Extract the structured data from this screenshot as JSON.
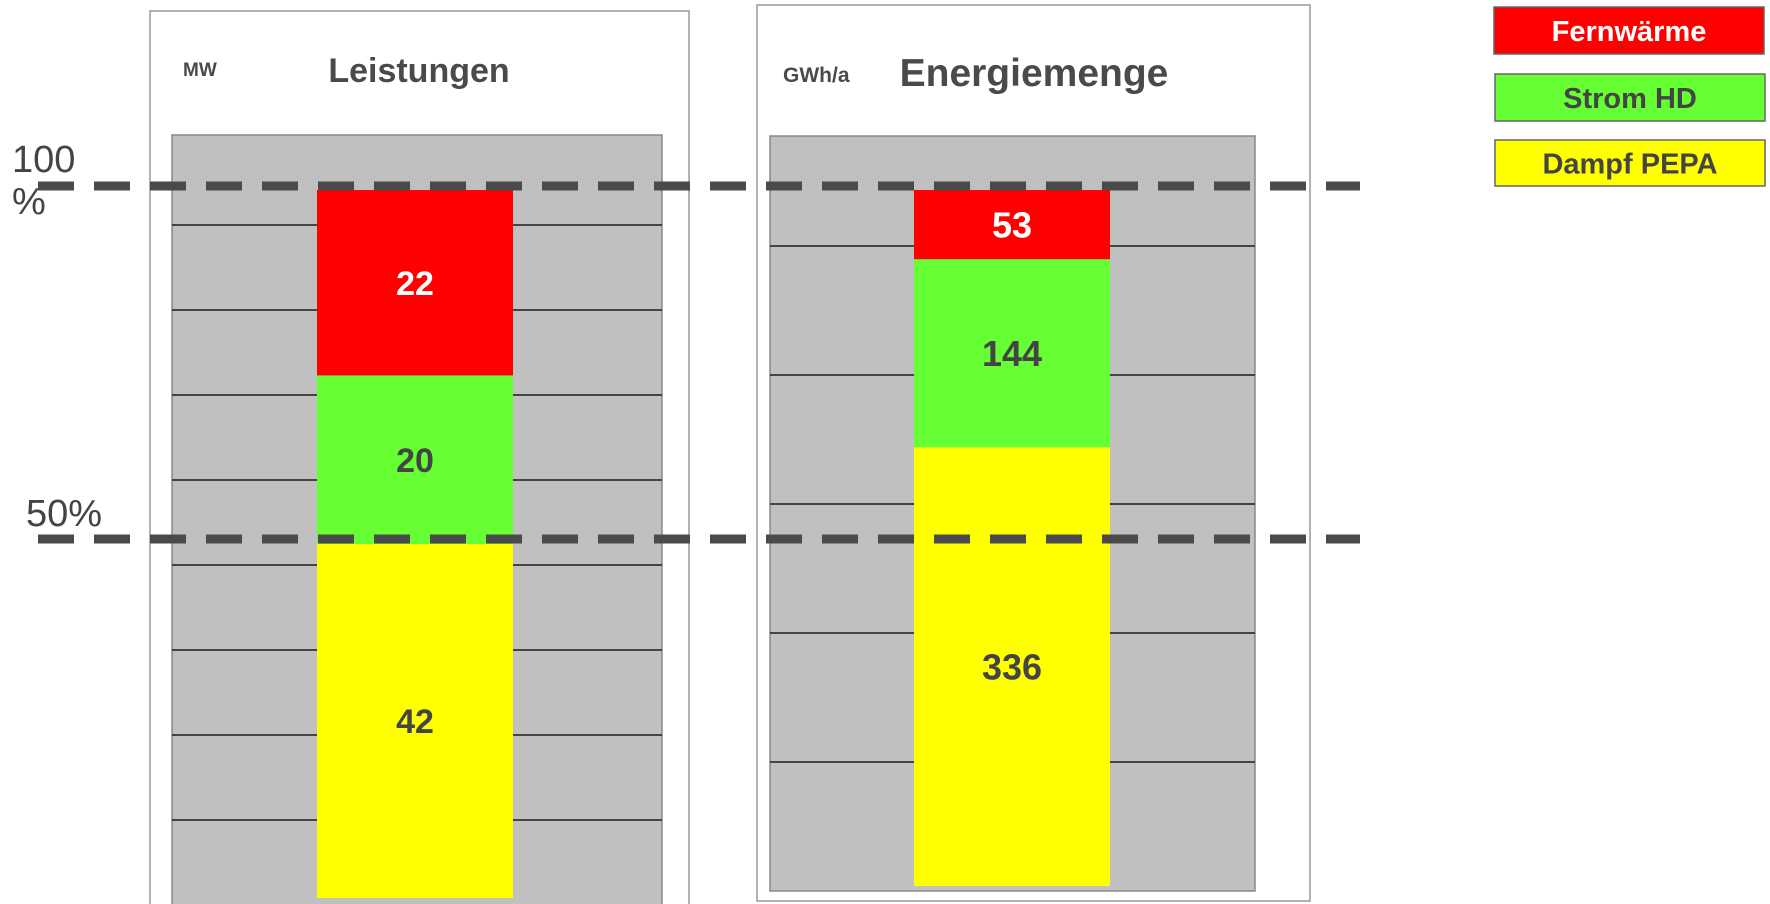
{
  "chart_data": [
    {
      "type": "bar",
      "stacked": true,
      "title": "Leistungen",
      "unit": "MW",
      "segments": [
        {
          "series": "Dampf PEPA",
          "value": 42
        },
        {
          "series": "Strom HD",
          "value": 20
        },
        {
          "series": "Fernwärme",
          "value": 22
        }
      ],
      "total": 84,
      "grid": true
    },
    {
      "type": "bar",
      "stacked": true,
      "title": "Energiemenge",
      "unit": "GWh/a",
      "segments": [
        {
          "series": "Dampf PEPA",
          "value": 336
        },
        {
          "series": "Strom HD",
          "value": 144
        },
        {
          "series": "Fernwärme",
          "value": 53
        }
      ],
      "total": 533,
      "grid": true
    }
  ],
  "legend": {
    "placement": "top-right",
    "items": [
      {
        "name": "Fernwärme",
        "color": "#ff0000",
        "text_color": "#ffffff"
      },
      {
        "name": "Strom HD",
        "color": "#66ff33",
        "text_color": "#444444"
      },
      {
        "name": "Dampf PEPA",
        "color": "#ffff00",
        "text_color": "#444444"
      }
    ]
  },
  "reference_lines": [
    {
      "label": "100 %",
      "fraction": 1.0
    },
    {
      "label": "50%",
      "fraction": 0.5
    }
  ],
  "colors": {
    "Fernwärme": "#ff0000",
    "Strom HD": "#66ff33",
    "Dampf PEPA": "#ffff00",
    "plot_background": "#c0c0c0",
    "gridline": "#444444",
    "reference_line": "#4a4a4a"
  }
}
